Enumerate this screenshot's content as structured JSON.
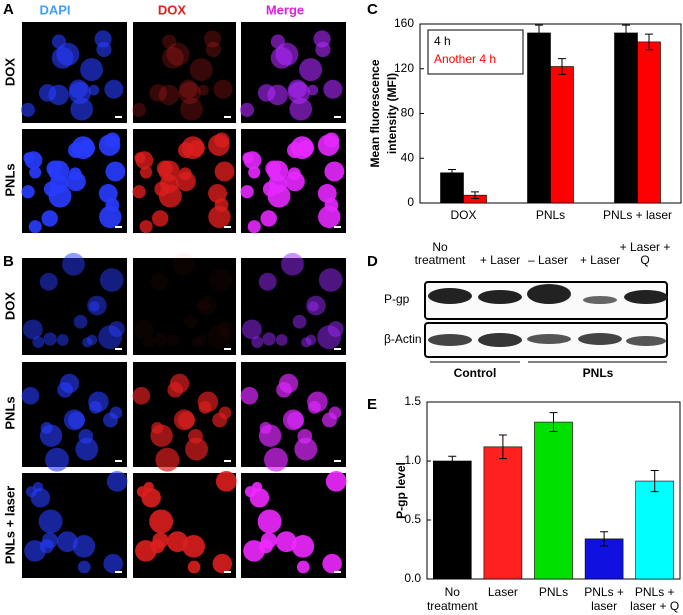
{
  "figure": {
    "panels": [
      "A",
      "B",
      "C",
      "D",
      "E"
    ],
    "panel_a": {
      "columns": [
        "DAPI",
        "DOX",
        "Merge"
      ],
      "rows": [
        "DOX",
        "PNLs"
      ]
    },
    "panel_b": {
      "rows": [
        "DOX",
        "PNLs",
        "PNLs + laser"
      ]
    },
    "panel_d": {
      "columns": [
        [
          "No",
          "treatment"
        ],
        [
          "+ Laser"
        ],
        [
          "– Laser"
        ],
        [
          "+ Laser"
        ],
        [
          "+ Laser +",
          "Q"
        ]
      ],
      "rows": [
        "P-gp",
        "β-Actin"
      ],
      "groups": [
        "Control",
        "PNLs"
      ]
    }
  },
  "chart_data": [
    {
      "type": "bar",
      "ylabel": [
        "Mean fluorescence",
        "intensity (MFI)"
      ],
      "categories": [
        "DOX",
        "PNLs",
        "PNLs + laser"
      ],
      "series": [
        {
          "name": "4 h",
          "color": "#000000",
          "values": [
            27,
            152,
            152
          ],
          "errors": [
            3,
            7,
            7
          ]
        },
        {
          "name": "Another 4 h",
          "color": "#ff0000",
          "values": [
            7,
            122,
            144
          ],
          "errors": [
            3,
            7,
            7
          ]
        }
      ],
      "ylim": [
        0,
        160
      ],
      "yticks": [
        0,
        40,
        80,
        120,
        160
      ],
      "legend": "top-left"
    },
    {
      "type": "bar",
      "ylabel": "P-gp level",
      "categories": [
        [
          "No",
          "treatment"
        ],
        [
          "Laser"
        ],
        [
          "PNLs"
        ],
        [
          "PNLs +",
          "laser"
        ],
        [
          "PNLs +",
          "laser + Q"
        ]
      ],
      "values": [
        1.0,
        1.12,
        1.33,
        0.34,
        0.83
      ],
      "errors": [
        0.04,
        0.1,
        0.08,
        0.06,
        0.09
      ],
      "colors": [
        "#000000",
        "#ff2020",
        "#00e000",
        "#1010e0",
        "#00ffff"
      ],
      "ylim": [
        0,
        1.5
      ],
      "yticks": [
        {
          "value": 0,
          "label": "0.0"
        },
        0.5,
        {
          "value": 1,
          "label": "1.0"
        },
        1.5
      ]
    }
  ]
}
